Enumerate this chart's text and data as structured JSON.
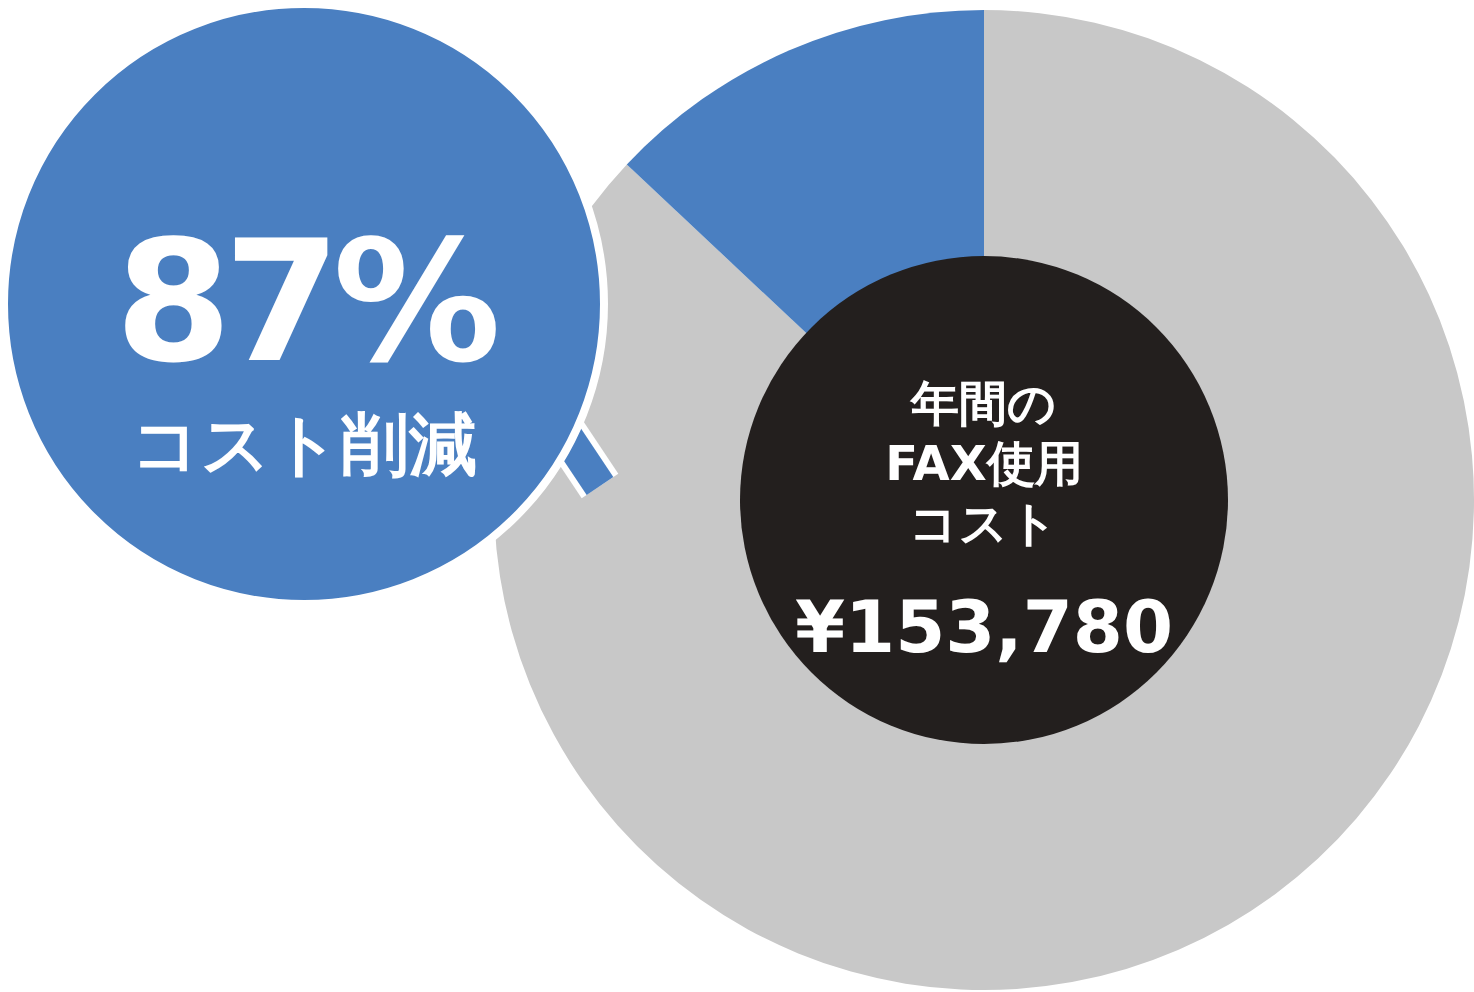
{
  "chart_data": {
    "type": "donut",
    "categories": [
      "コスト削減",
      null
    ],
    "values": [
      87,
      13
    ],
    "colors": [
      "#c8c8c8",
      "#4a7fc1"
    ],
    "value_labels": [
      "87%",
      null
    ],
    "annotations": [
      "年間の",
      "FAX使用",
      "コスト",
      "¥153,780"
    ],
    "legend": false
  }
}
